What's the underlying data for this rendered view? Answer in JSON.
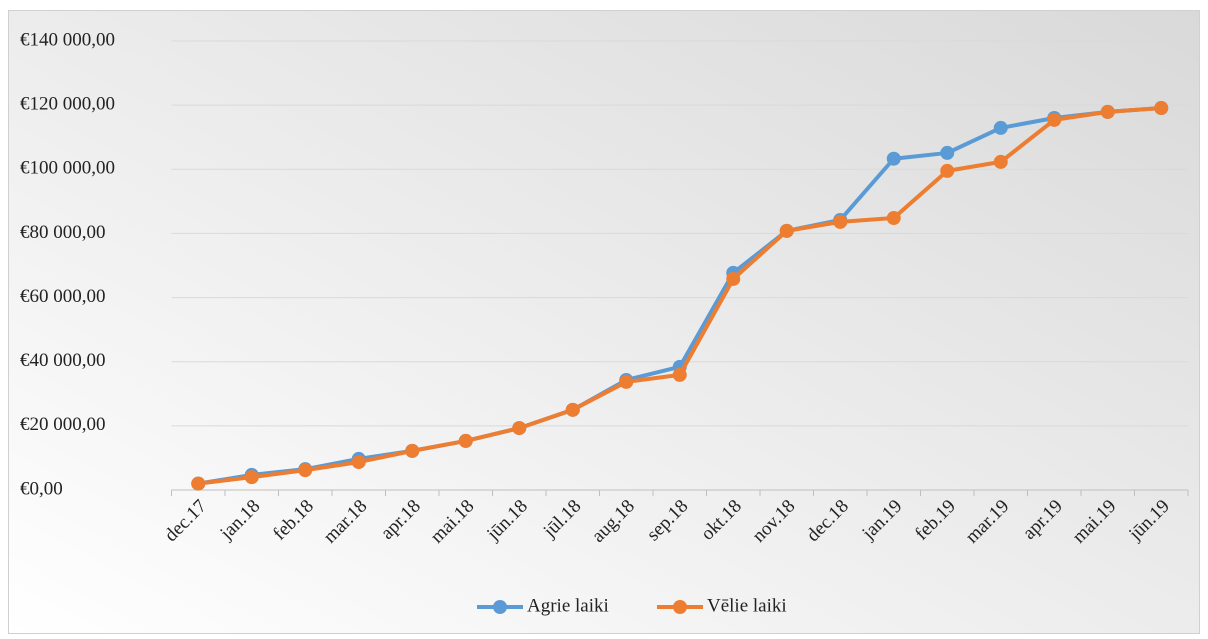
{
  "chart_data": {
    "type": "line",
    "categories": [
      "dec.17",
      "jan.18",
      "feb.18",
      "mar.18",
      "apr.18",
      "mai.18",
      "jūn.18",
      "jūl.18",
      "aug.18",
      "sep.18",
      "okt.18",
      "nov.18",
      "dec.18",
      "jan.19",
      "feb.19",
      "mar.19",
      "apr.19",
      "mai.19",
      "jūn.19"
    ],
    "series": [
      {
        "name": "Agrie laiki",
        "color": "#5b9bd5",
        "values": [
          2000,
          4700,
          6500,
          9700,
          12200,
          15300,
          19300,
          25000,
          34300,
          38400,
          67700,
          80800,
          84200,
          103300,
          105100,
          112900,
          116000,
          117900,
          119100
        ]
      },
      {
        "name": "Vēlie laiki",
        "color": "#ed7d31",
        "values": [
          2000,
          4000,
          6200,
          8700,
          12200,
          15300,
          19300,
          25000,
          33700,
          35900,
          65800,
          80800,
          83600,
          84800,
          99500,
          102300,
          115400,
          117900,
          119100
        ]
      }
    ],
    "ylim": [
      0,
      140000
    ],
    "yticks": [
      {
        "value": 0,
        "label": "€0,00"
      },
      {
        "value": 20000,
        "label": "€20 000,00"
      },
      {
        "value": 40000,
        "label": "€40 000,00"
      },
      {
        "value": 60000,
        "label": "€60 000,00"
      },
      {
        "value": 80000,
        "label": "€80 000,00"
      },
      {
        "value": 100000,
        "label": "€100 000,00"
      },
      {
        "value": 120000,
        "label": "€120 000,00"
      },
      {
        "value": 140000,
        "label": "€140 000,00"
      }
    ],
    "grid": true,
    "legend": "bottom"
  }
}
